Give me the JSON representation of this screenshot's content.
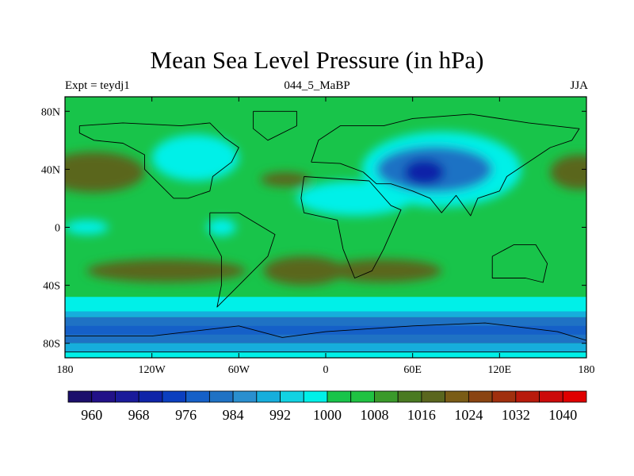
{
  "chart_data": {
    "type": "contour-map",
    "title": "Mean Sea Level Pressure (in hPa)",
    "subtitle_left": "Expt = teydj1",
    "subtitle_center": "044_5_MaBP",
    "subtitle_right": "JJA",
    "x_ticks": [
      {
        "lon": -180,
        "label": "180"
      },
      {
        "lon": -120,
        "label": "120W"
      },
      {
        "lon": -60,
        "label": "60W"
      },
      {
        "lon": 0,
        "label": "0"
      },
      {
        "lon": 60,
        "label": "60E"
      },
      {
        "lon": 120,
        "label": "120E"
      },
      {
        "lon": 180,
        "label": "180"
      }
    ],
    "y_ticks": [
      {
        "lat": 80,
        "label": "80N"
      },
      {
        "lat": 40,
        "label": "40N"
      },
      {
        "lat": 0,
        "label": "0"
      },
      {
        "lat": -40,
        "label": "40S"
      },
      {
        "lat": -80,
        "label": "80S"
      }
    ],
    "xlim": [
      -180,
      180
    ],
    "ylim": [
      -90,
      90
    ],
    "colorbar": {
      "levels": [
        956,
        960,
        964,
        968,
        972,
        976,
        980,
        984,
        988,
        992,
        996,
        1000,
        1004,
        1008,
        1012,
        1016,
        1020,
        1024,
        1028,
        1032,
        1036,
        1040,
        1044
      ],
      "colors": [
        "#1b0f6b",
        "#221188",
        "#1a1a9a",
        "#0f24a8",
        "#0b3fbf",
        "#1560c8",
        "#1f72c4",
        "#2a8fcf",
        "#16aedc",
        "#12d2e2",
        "#00f0e8",
        "#18c44a",
        "#20c242",
        "#3a9a2a",
        "#4a7a22",
        "#5a661e",
        "#7a5c16",
        "#8a4412",
        "#a0300e",
        "#b81a0c",
        "#cc0a0a",
        "#e00000"
      ],
      "labels": [
        {
          "value": 960,
          "text": "960"
        },
        {
          "value": 968,
          "text": "968"
        },
        {
          "value": 976,
          "text": "976"
        },
        {
          "value": 984,
          "text": "984"
        },
        {
          "value": 992,
          "text": "992"
        },
        {
          "value": 1000,
          "text": "1000"
        },
        {
          "value": 1008,
          "text": "1008"
        },
        {
          "value": 1016,
          "text": "1016"
        },
        {
          "value": 1024,
          "text": "1024"
        },
        {
          "value": 1032,
          "text": "1032"
        },
        {
          "value": 1040,
          "text": "1040"
        }
      ]
    },
    "fields": {
      "background": "#18c44a",
      "pressure_systems": [
        {
          "name": "north-pacific-high",
          "lon": -160,
          "lat": 38,
          "rx_deg": 35,
          "ry_deg": 14,
          "color": "#5a661e"
        },
        {
          "name": "north-pacific-high-edge",
          "lon": 175,
          "lat": 38,
          "rx_deg": 20,
          "ry_deg": 12,
          "color": "#5a661e"
        },
        {
          "name": "north-atlantic-high",
          "lon": -28,
          "lat": 33,
          "rx_deg": 17,
          "ry_deg": 5,
          "color": "#5a661e"
        },
        {
          "name": "south-pacific-high",
          "lon": -110,
          "lat": -30,
          "rx_deg": 55,
          "ry_deg": 8,
          "color": "#5a661e"
        },
        {
          "name": "south-atlantic-high",
          "lon": -15,
          "lat": -30,
          "rx_deg": 28,
          "ry_deg": 10,
          "color": "#5a661e"
        },
        {
          "name": "south-indian-high",
          "lon": 40,
          "lat": -30,
          "rx_deg": 40,
          "ry_deg": 8,
          "color": "#5a661e"
        },
        {
          "name": "asian-low-outer",
          "lon": 80,
          "lat": 40,
          "rx_deg": 55,
          "ry_deg": 26,
          "color": "#00f0e8"
        },
        {
          "name": "asian-low",
          "lon": 75,
          "lat": 40,
          "rx_deg": 40,
          "ry_deg": 16,
          "color": "#1f72c4"
        },
        {
          "name": "asian-low-core",
          "lon": 68,
          "lat": 38,
          "rx_deg": 14,
          "ry_deg": 9,
          "color": "#0f24a8"
        },
        {
          "name": "arctic-low",
          "lon": -90,
          "lat": 48,
          "rx_deg": 30,
          "ry_deg": 16,
          "color": "#00f0e8"
        },
        {
          "name": "sahara-low",
          "lon": 20,
          "lat": 20,
          "rx_deg": 40,
          "ry_deg": 12,
          "color": "#00f0e8"
        },
        {
          "name": "equatorial-africa",
          "lon": -72,
          "lat": 0,
          "rx_deg": 10,
          "ry_deg": 6,
          "color": "#00f0e8"
        },
        {
          "name": "east-pacific-low",
          "lon": -165,
          "lat": 0,
          "rx_deg": 15,
          "ry_deg": 5,
          "color": "#00f0e8"
        }
      ],
      "southern_bands": [
        {
          "lat_top": -48,
          "lat_bottom": -58,
          "color": "#00f0e8"
        },
        {
          "lat_top": -58,
          "lat_bottom": -62,
          "color": "#16aedc"
        },
        {
          "lat_top": -62,
          "lat_bottom": -80,
          "color": "#1f72c4"
        },
        {
          "lat_top": -68,
          "lat_bottom": -74,
          "color": "#1560c8"
        },
        {
          "lat_top": -80,
          "lat_bottom": -86,
          "color": "#16aedc"
        },
        {
          "lat_top": -86,
          "lat_bottom": -90,
          "color": "#00f0e8"
        }
      ]
    },
    "coastlines": [
      {
        "name": "north-america",
        "points": [
          [
            -170,
            70
          ],
          [
            -140,
            72
          ],
          [
            -100,
            70
          ],
          [
            -80,
            72
          ],
          [
            -70,
            62
          ],
          [
            -60,
            55
          ],
          [
            -65,
            45
          ],
          [
            -78,
            35
          ],
          [
            -80,
            25
          ],
          [
            -95,
            20
          ],
          [
            -105,
            20
          ],
          [
            -115,
            30
          ],
          [
            -125,
            40
          ],
          [
            -125,
            50
          ],
          [
            -140,
            58
          ],
          [
            -160,
            60
          ],
          [
            -170,
            65
          ],
          [
            -170,
            70
          ]
        ]
      },
      {
        "name": "greenland",
        "points": [
          [
            -50,
            80
          ],
          [
            -20,
            80
          ],
          [
            -20,
            70
          ],
          [
            -40,
            60
          ],
          [
            -50,
            68
          ],
          [
            -50,
            80
          ]
        ]
      },
      {
        "name": "south-america",
        "points": [
          [
            -80,
            10
          ],
          [
            -60,
            10
          ],
          [
            -35,
            -5
          ],
          [
            -40,
            -20
          ],
          [
            -50,
            -30
          ],
          [
            -65,
            -45
          ],
          [
            -75,
            -55
          ],
          [
            -72,
            -40
          ],
          [
            -72,
            -20
          ],
          [
            -80,
            -5
          ],
          [
            -80,
            10
          ]
        ]
      },
      {
        "name": "africa",
        "points": [
          [
            -15,
            35
          ],
          [
            30,
            32
          ],
          [
            45,
            15
          ],
          [
            52,
            12
          ],
          [
            40,
            -15
          ],
          [
            32,
            -30
          ],
          [
            20,
            -35
          ],
          [
            12,
            -15
          ],
          [
            8,
            5
          ],
          [
            -15,
            10
          ],
          [
            -17,
            20
          ],
          [
            -15,
            35
          ]
        ]
      },
      {
        "name": "eurasia",
        "points": [
          [
            -10,
            45
          ],
          [
            -5,
            60
          ],
          [
            10,
            70
          ],
          [
            40,
            70
          ],
          [
            60,
            75
          ],
          [
            100,
            78
          ],
          [
            140,
            72
          ],
          [
            175,
            68
          ],
          [
            170,
            60
          ],
          [
            155,
            55
          ],
          [
            140,
            45
          ],
          [
            125,
            35
          ],
          [
            120,
            25
          ],
          [
            105,
            20
          ],
          [
            100,
            8
          ],
          [
            90,
            22
          ],
          [
            80,
            10
          ],
          [
            72,
            20
          ],
          [
            60,
            25
          ],
          [
            45,
            30
          ],
          [
            35,
            30
          ],
          [
            26,
            38
          ],
          [
            10,
            44
          ],
          [
            -10,
            45
          ]
        ]
      },
      {
        "name": "australia",
        "points": [
          [
            115,
            -20
          ],
          [
            130,
            -12
          ],
          [
            145,
            -12
          ],
          [
            153,
            -25
          ],
          [
            150,
            -38
          ],
          [
            138,
            -35
          ],
          [
            115,
            -35
          ],
          [
            115,
            -20
          ]
        ]
      },
      {
        "name": "antarctica",
        "points": [
          [
            -180,
            -75
          ],
          [
            -120,
            -75
          ],
          [
            -60,
            -68
          ],
          [
            -30,
            -76
          ],
          [
            0,
            -72
          ],
          [
            60,
            -68
          ],
          [
            110,
            -66
          ],
          [
            160,
            -72
          ],
          [
            180,
            -78
          ],
          [
            180,
            -86
          ],
          [
            -180,
            -86
          ],
          [
            -180,
            -75
          ]
        ]
      }
    ]
  }
}
